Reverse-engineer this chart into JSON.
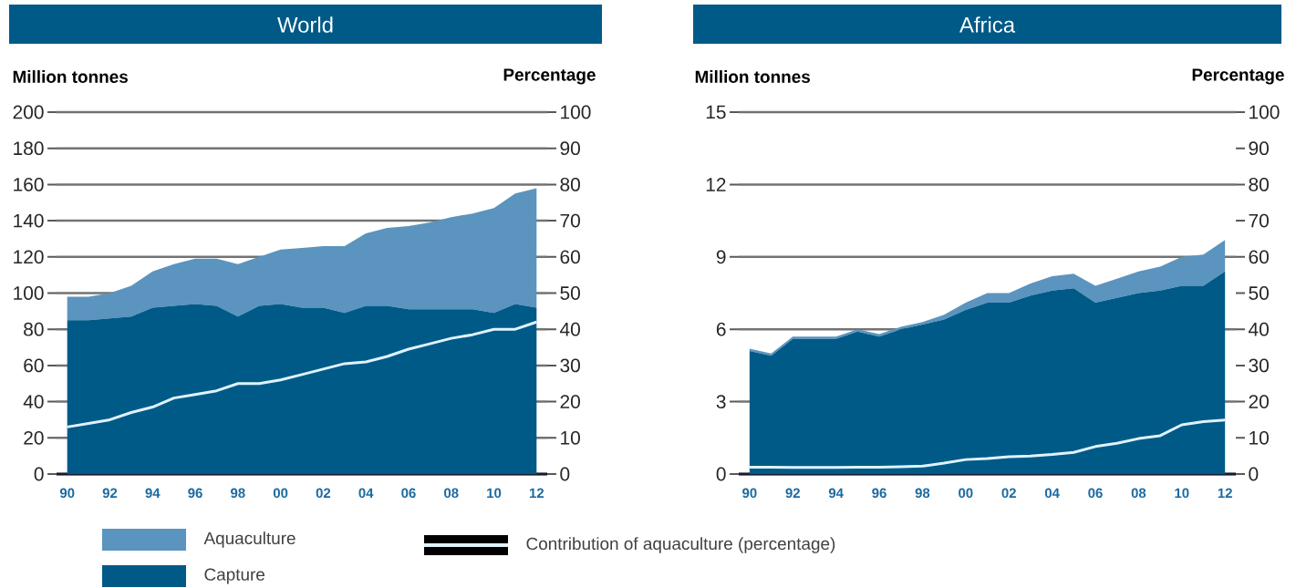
{
  "chart_data": [
    {
      "type": "area",
      "title": "World",
      "ylabel": "Million tonnes",
      "y2label": "Percentage",
      "stacked": true,
      "grid": "y",
      "legend": "bottom",
      "x": [
        1990,
        1991,
        1992,
        1993,
        1994,
        1995,
        1996,
        1997,
        1998,
        1999,
        2000,
        2001,
        2002,
        2003,
        2004,
        2005,
        2006,
        2007,
        2008,
        2009,
        2010,
        2011,
        2012
      ],
      "xlim": [
        1989.5,
        2012.5
      ],
      "xticks": [
        {
          "value": 1990,
          "label": "90"
        },
        {
          "value": 1992,
          "label": "92"
        },
        {
          "value": 1994,
          "label": "94"
        },
        {
          "value": 1996,
          "label": "96"
        },
        {
          "value": 1998,
          "label": "98"
        },
        {
          "value": 2000,
          "label": "00"
        },
        {
          "value": 2002,
          "label": "02"
        },
        {
          "value": 2004,
          "label": "04"
        },
        {
          "value": 2006,
          "label": "06"
        },
        {
          "value": 2008,
          "label": "08"
        },
        {
          "value": 2010,
          "label": "10"
        },
        {
          "value": 2012,
          "label": "12"
        }
      ],
      "ylim": [
        0,
        200
      ],
      "yticks": [
        0,
        20,
        40,
        60,
        80,
        100,
        120,
        140,
        160,
        180,
        200
      ],
      "y2lim": [
        0,
        100
      ],
      "y2ticks": [
        0,
        10,
        20,
        30,
        40,
        50,
        60,
        70,
        80,
        90,
        100
      ],
      "series": [
        {
          "name": "Capture",
          "color": "#005a87",
          "values": [
            85,
            85,
            86,
            87,
            92,
            93,
            94,
            93,
            87,
            93,
            94,
            92,
            92,
            89,
            93,
            93,
            91,
            91,
            91,
            91,
            89,
            94,
            92
          ]
        },
        {
          "name": "Aquaculture",
          "color": "#5b94be",
          "values": [
            13,
            13,
            14,
            17,
            20,
            23,
            25,
            26,
            29,
            27,
            30,
            33,
            34,
            37,
            40,
            43,
            46,
            48,
            51,
            53,
            58,
            61,
            66
          ]
        },
        {
          "name": "Contribution of aquaculture (percentage)",
          "type": "line",
          "axis": "y2",
          "color": "#dff3ff",
          "values": [
            13,
            14,
            15,
            17,
            18.5,
            21,
            22,
            23,
            25,
            25,
            26,
            27.5,
            29,
            30.5,
            31,
            32.5,
            34.5,
            36,
            37.5,
            38.5,
            40,
            40,
            42
          ]
        }
      ]
    },
    {
      "type": "area",
      "title": "Africa",
      "ylabel": "Million tonnes",
      "y2label": "Percentage",
      "stacked": true,
      "grid": "y",
      "x": [
        1990,
        1991,
        1992,
        1993,
        1994,
        1995,
        1996,
        1997,
        1998,
        1999,
        2000,
        2001,
        2002,
        2003,
        2004,
        2005,
        2006,
        2007,
        2008,
        2009,
        2010,
        2011,
        2012
      ],
      "xlim": [
        1989.5,
        2012.5
      ],
      "xticks": [
        {
          "value": 1990,
          "label": "90"
        },
        {
          "value": 1992,
          "label": "92"
        },
        {
          "value": 1994,
          "label": "94"
        },
        {
          "value": 1996,
          "label": "96"
        },
        {
          "value": 1998,
          "label": "98"
        },
        {
          "value": 2000,
          "label": "00"
        },
        {
          "value": 2002,
          "label": "02"
        },
        {
          "value": 2004,
          "label": "04"
        },
        {
          "value": 2006,
          "label": "06"
        },
        {
          "value": 2008,
          "label": "08"
        },
        {
          "value": 2010,
          "label": "10"
        },
        {
          "value": 2012,
          "label": "12"
        }
      ],
      "ylim": [
        0,
        15
      ],
      "yticks": [
        0,
        3,
        6,
        9,
        12,
        15
      ],
      "y2lim": [
        0,
        100
      ],
      "y2ticks": [
        0,
        10,
        20,
        30,
        40,
        50,
        60,
        70,
        80,
        90,
        100
      ],
      "series": [
        {
          "color": "#005a87",
          "values": [
            5.1,
            4.9,
            5.6,
            5.6,
            5.6,
            5.9,
            5.7,
            6.0,
            6.2,
            6.4,
            6.8,
            7.1,
            7.1,
            7.4,
            7.6,
            7.7,
            7.1,
            7.3,
            7.5,
            7.6,
            7.8,
            7.8,
            8.4
          ]
        },
        {
          "color": "#5b94be",
          "values": [
            0.1,
            0.1,
            0.1,
            0.1,
            0.1,
            0.1,
            0.1,
            0.1,
            0.1,
            0.2,
            0.3,
            0.4,
            0.4,
            0.5,
            0.6,
            0.6,
            0.7,
            0.8,
            0.9,
            1.0,
            1.2,
            1.3,
            1.3
          ]
        },
        {
          "type": "line",
          "axis": "y2",
          "color": "#dff3ff",
          "values": [
            1.9,
            1.9,
            1.8,
            1.8,
            1.8,
            1.9,
            1.9,
            2,
            2.2,
            3,
            4,
            4.3,
            4.8,
            5,
            5.4,
            6,
            7.6,
            8.5,
            9.8,
            10.6,
            13.6,
            14.5,
            14.9
          ]
        }
      ]
    }
  ]
}
